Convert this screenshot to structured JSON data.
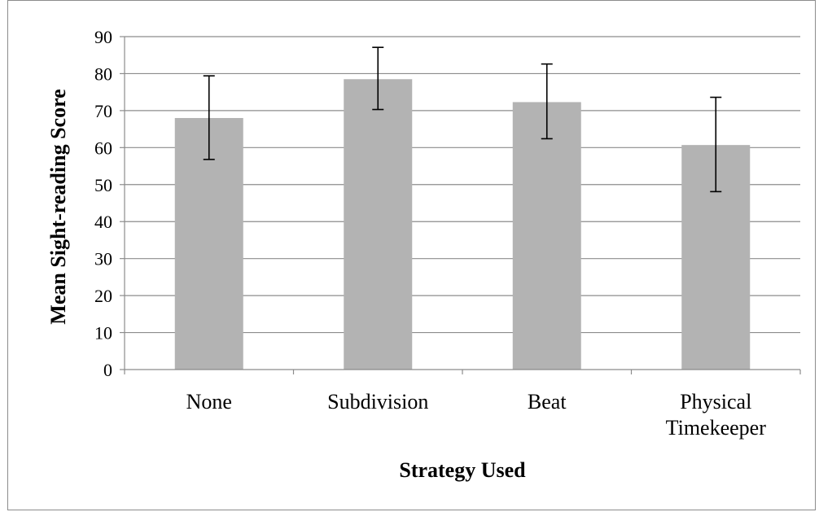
{
  "chart_data": {
    "type": "bar",
    "categories": [
      [
        "None"
      ],
      [
        "Subdivision"
      ],
      [
        "Beat"
      ],
      [
        "Physical",
        "Timekeeper"
      ]
    ],
    "values": [
      68,
      78.5,
      72.3,
      60.7
    ],
    "error_low": [
      56.8,
      70.3,
      62.4,
      48.1
    ],
    "error_high": [
      79.4,
      87.1,
      82.6,
      73.6
    ],
    "xlabel": "Strategy Used",
    "ylabel": "Mean Sight-reading Score",
    "ylim": [
      0,
      90
    ],
    "yticks": [
      0,
      10,
      20,
      30,
      40,
      50,
      60,
      70,
      80,
      90
    ],
    "grid": true,
    "bar_color": "#b3b3b3"
  }
}
